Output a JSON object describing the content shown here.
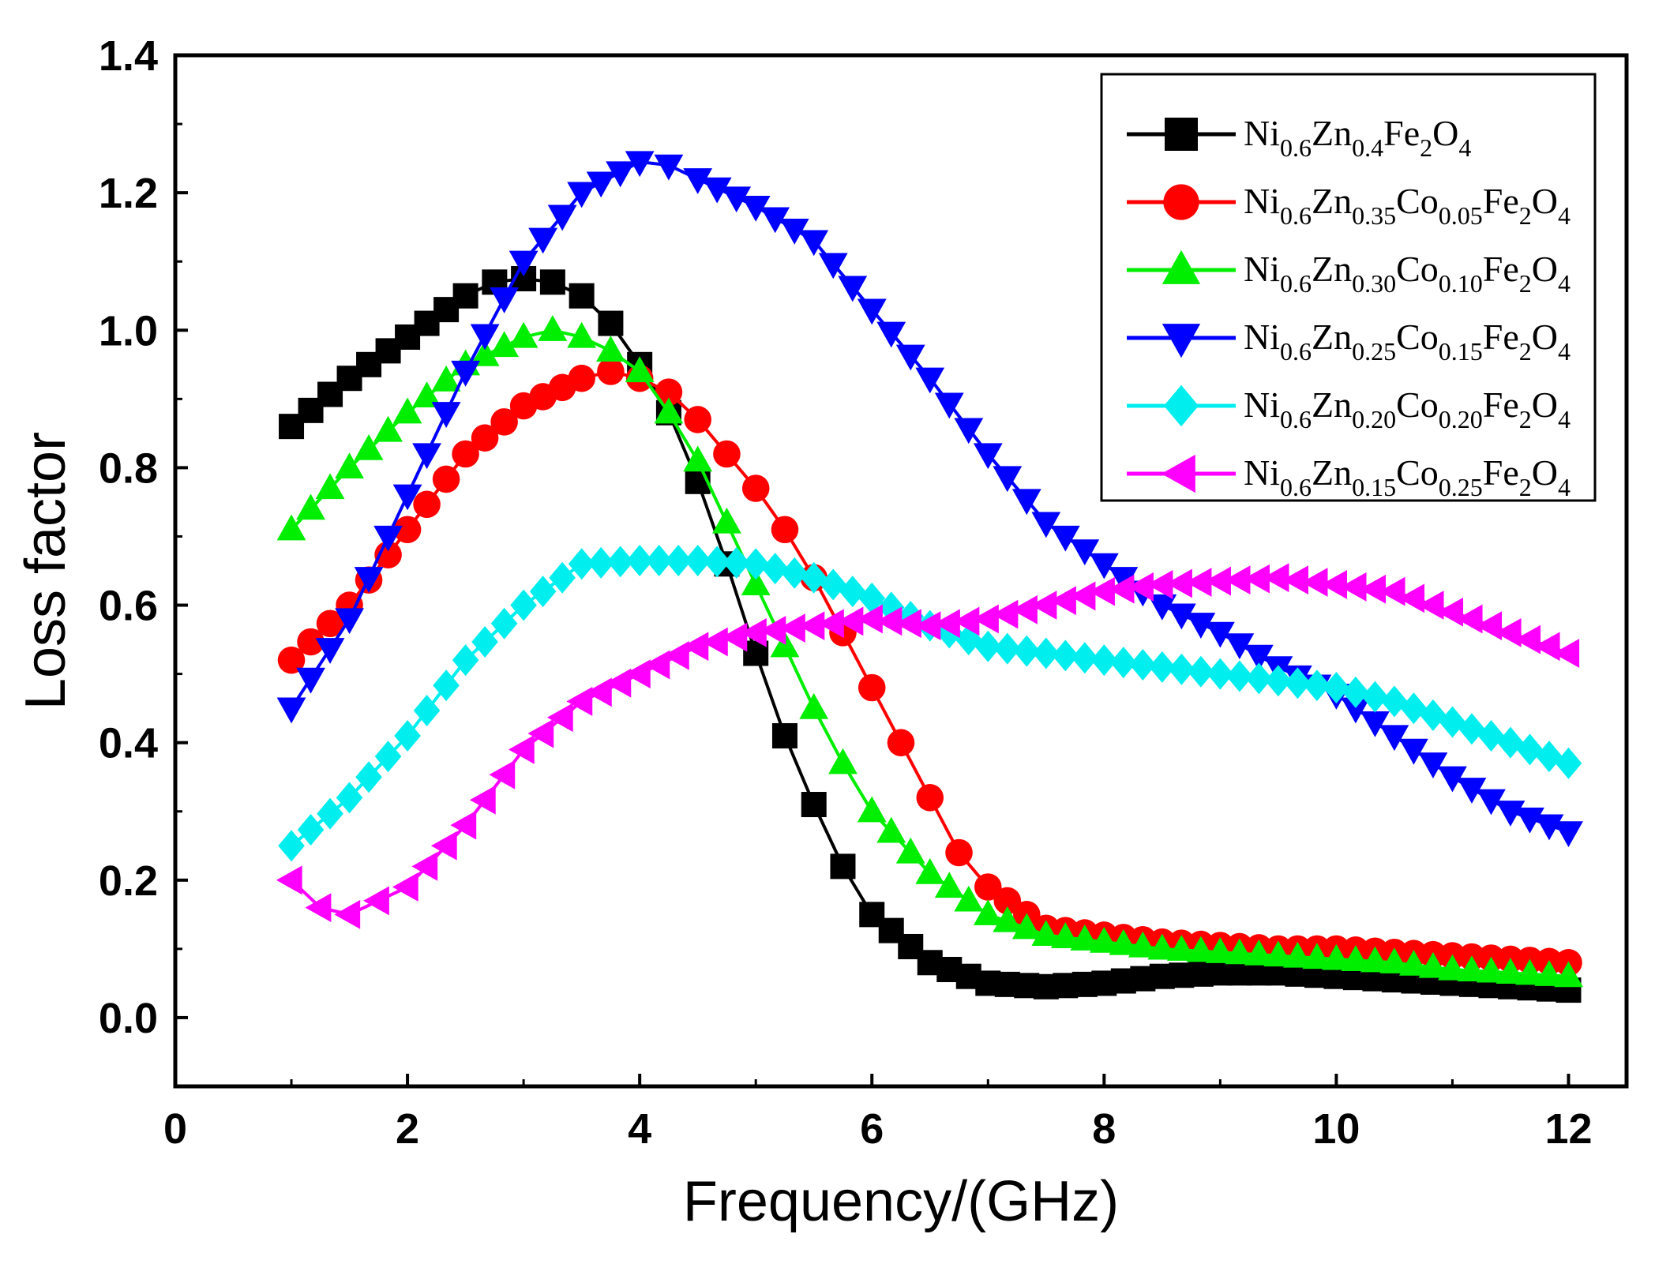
{
  "chart_data": {
    "type": "line",
    "title": "",
    "xlabel": "Frequency/(GHz)",
    "ylabel": "Loss factor",
    "xlim": [
      0,
      12.5
    ],
    "ylim": [
      -0.1,
      1.4
    ],
    "xticks": [
      0,
      2,
      4,
      6,
      8,
      10,
      12
    ],
    "yticks": [
      0.0,
      0.2,
      0.4,
      0.6,
      0.8,
      1.0,
      1.2,
      1.4
    ],
    "xtick_labels": [
      "0",
      "2",
      "4",
      "6",
      "8",
      "10",
      "12"
    ],
    "ytick_labels": [
      "0.0",
      "0.2",
      "0.4",
      "0.6",
      "0.8",
      "1.0",
      "1.2",
      "1.4"
    ],
    "grid": false,
    "legend_position": "top-right",
    "series": [
      {
        "name": "Ni0.6Zn0.4Fe2O4",
        "legend_parts": [
          [
            "Ni",
            ""
          ],
          [
            "0.6",
            "sub"
          ],
          [
            "Zn",
            ""
          ],
          [
            "0.4",
            "sub"
          ],
          [
            "Fe",
            ""
          ],
          [
            "2",
            "sub"
          ],
          [
            "O",
            ""
          ],
          [
            "4",
            "sub"
          ]
        ],
        "color": "#000000",
        "marker": "square",
        "x": [
          1.0,
          1.5,
          2.0,
          2.5,
          2.75,
          3.0,
          3.25,
          3.5,
          3.75,
          4.0,
          4.25,
          4.5,
          4.75,
          5.0,
          5.25,
          5.5,
          5.75,
          6.0,
          6.5,
          7.0,
          7.5,
          8.0,
          8.5,
          9.0,
          9.5,
          10.0,
          10.5,
          11.0,
          11.5,
          12.0
        ],
        "y": [
          0.86,
          0.93,
          0.99,
          1.05,
          1.07,
          1.075,
          1.07,
          1.05,
          1.01,
          0.95,
          0.88,
          0.78,
          0.66,
          0.53,
          0.41,
          0.31,
          0.22,
          0.15,
          0.08,
          0.05,
          0.045,
          0.05,
          0.06,
          0.065,
          0.065,
          0.06,
          0.055,
          0.05,
          0.045,
          0.04
        ]
      },
      {
        "name": "Ni0.6Zn0.35Co0.05Fe2O4",
        "legend_parts": [
          [
            "Ni",
            ""
          ],
          [
            "0.6",
            "sub"
          ],
          [
            "Zn",
            ""
          ],
          [
            "0.35",
            "sub"
          ],
          [
            "Co",
            ""
          ],
          [
            "0.05",
            "sub"
          ],
          [
            "Fe",
            ""
          ],
          [
            "2",
            "sub"
          ],
          [
            "O",
            ""
          ],
          [
            "4",
            "sub"
          ]
        ],
        "color": "#ff0000",
        "marker": "circle",
        "x": [
          1.0,
          1.5,
          2.0,
          2.5,
          3.0,
          3.5,
          3.75,
          4.0,
          4.25,
          4.5,
          4.75,
          5.0,
          5.25,
          5.5,
          5.75,
          6.0,
          6.25,
          6.5,
          6.75,
          7.0,
          7.5,
          8.0,
          8.5,
          9.0,
          9.5,
          10.0,
          10.5,
          11.0,
          11.5,
          12.0
        ],
        "y": [
          0.52,
          0.6,
          0.71,
          0.82,
          0.89,
          0.93,
          0.94,
          0.93,
          0.91,
          0.87,
          0.82,
          0.77,
          0.71,
          0.64,
          0.56,
          0.48,
          0.4,
          0.32,
          0.24,
          0.19,
          0.13,
          0.12,
          0.11,
          0.105,
          0.1,
          0.1,
          0.095,
          0.09,
          0.085,
          0.08
        ]
      },
      {
        "name": "Ni0.6Zn0.30Co0.10Fe2O4",
        "legend_parts": [
          [
            "Ni",
            ""
          ],
          [
            "0.6",
            "sub"
          ],
          [
            "Zn",
            ""
          ],
          [
            "0.30",
            "sub"
          ],
          [
            "Co",
            ""
          ],
          [
            "0.10",
            "sub"
          ],
          [
            "Fe",
            ""
          ],
          [
            "2",
            "sub"
          ],
          [
            "O",
            ""
          ],
          [
            "4",
            "sub"
          ]
        ],
        "color": "#00ee00",
        "marker": "triangle-up",
        "x": [
          1.0,
          1.5,
          2.0,
          2.5,
          3.0,
          3.25,
          3.5,
          3.75,
          4.0,
          4.25,
          4.5,
          4.75,
          5.0,
          5.25,
          5.5,
          5.75,
          6.0,
          6.5,
          7.0,
          7.5,
          8.0,
          8.5,
          9.0,
          9.5,
          10.0,
          10.5,
          11.0,
          11.5,
          12.0
        ],
        "y": [
          0.71,
          0.8,
          0.88,
          0.95,
          0.99,
          1.0,
          0.99,
          0.97,
          0.94,
          0.88,
          0.81,
          0.72,
          0.63,
          0.54,
          0.45,
          0.37,
          0.3,
          0.21,
          0.15,
          0.12,
          0.11,
          0.1,
          0.095,
          0.09,
          0.085,
          0.08,
          0.07,
          0.065,
          0.06
        ]
      },
      {
        "name": "Ni0.6Zn0.25Co0.15Fe2O4",
        "legend_parts": [
          [
            "Ni",
            ""
          ],
          [
            "0.6",
            "sub"
          ],
          [
            "Zn",
            ""
          ],
          [
            "0.25",
            "sub"
          ],
          [
            "Co",
            ""
          ],
          [
            "0.15",
            "sub"
          ],
          [
            "Fe",
            ""
          ],
          [
            "2",
            "sub"
          ],
          [
            "O",
            ""
          ],
          [
            "4",
            "sub"
          ]
        ],
        "color": "#0000ff",
        "marker": "triangle-down",
        "x": [
          1.0,
          1.5,
          2.0,
          2.5,
          3.0,
          3.5,
          4.0,
          4.25,
          4.5,
          5.0,
          5.5,
          6.0,
          6.5,
          7.0,
          7.5,
          8.0,
          8.5,
          9.0,
          9.5,
          10.0,
          10.5,
          11.0,
          11.5,
          12.0
        ],
        "y": [
          0.45,
          0.58,
          0.76,
          0.94,
          1.1,
          1.2,
          1.245,
          1.24,
          1.22,
          1.18,
          1.13,
          1.03,
          0.93,
          0.82,
          0.72,
          0.66,
          0.6,
          0.56,
          0.51,
          0.47,
          0.41,
          0.35,
          0.3,
          0.27
        ]
      },
      {
        "name": "Ni0.6Zn0.20Co0.20Fe2O4",
        "legend_parts": [
          [
            "Ni",
            ""
          ],
          [
            "0.6",
            "sub"
          ],
          [
            "Zn",
            ""
          ],
          [
            "0.20",
            "sub"
          ],
          [
            "Co",
            ""
          ],
          [
            "0.20",
            "sub"
          ],
          [
            "Fe",
            ""
          ],
          [
            "2",
            "sub"
          ],
          [
            "O",
            ""
          ],
          [
            "4",
            "sub"
          ]
        ],
        "color": "#00eeee",
        "marker": "diamond",
        "x": [
          1.0,
          1.5,
          2.0,
          2.5,
          3.0,
          3.5,
          4.0,
          4.5,
          5.0,
          5.5,
          6.0,
          6.5,
          7.0,
          7.5,
          8.0,
          8.5,
          9.0,
          9.5,
          10.0,
          10.5,
          11.0,
          11.5,
          12.0
        ],
        "y": [
          0.25,
          0.32,
          0.41,
          0.52,
          0.6,
          0.66,
          0.665,
          0.665,
          0.66,
          0.64,
          0.61,
          0.57,
          0.54,
          0.53,
          0.52,
          0.51,
          0.5,
          0.49,
          0.48,
          0.46,
          0.43,
          0.4,
          0.37
        ]
      },
      {
        "name": "Ni0.6Zn0.15Co0.25Fe2O4",
        "legend_parts": [
          [
            "Ni",
            ""
          ],
          [
            "0.6",
            "sub"
          ],
          [
            "Zn",
            ""
          ],
          [
            "0.15",
            "sub"
          ],
          [
            "Co",
            ""
          ],
          [
            "0.25",
            "sub"
          ],
          [
            "Fe",
            ""
          ],
          [
            "2",
            "sub"
          ],
          [
            "O",
            ""
          ],
          [
            "4",
            "sub"
          ]
        ],
        "color": "#ff00ff",
        "marker": "triangle-left",
        "x": [
          1.0,
          1.25,
          1.5,
          1.75,
          2.0,
          2.5,
          3.0,
          3.5,
          4.0,
          4.5,
          5.0,
          5.5,
          6.0,
          6.5,
          7.0,
          7.5,
          8.0,
          8.5,
          9.0,
          9.5,
          10.0,
          10.5,
          11.0,
          11.5,
          12.0
        ],
        "y": [
          0.2,
          0.16,
          0.15,
          0.17,
          0.19,
          0.28,
          0.39,
          0.46,
          0.5,
          0.54,
          0.56,
          0.57,
          0.58,
          0.57,
          0.58,
          0.6,
          0.62,
          0.63,
          0.635,
          0.64,
          0.63,
          0.62,
          0.59,
          0.56,
          0.53
        ]
      }
    ]
  }
}
